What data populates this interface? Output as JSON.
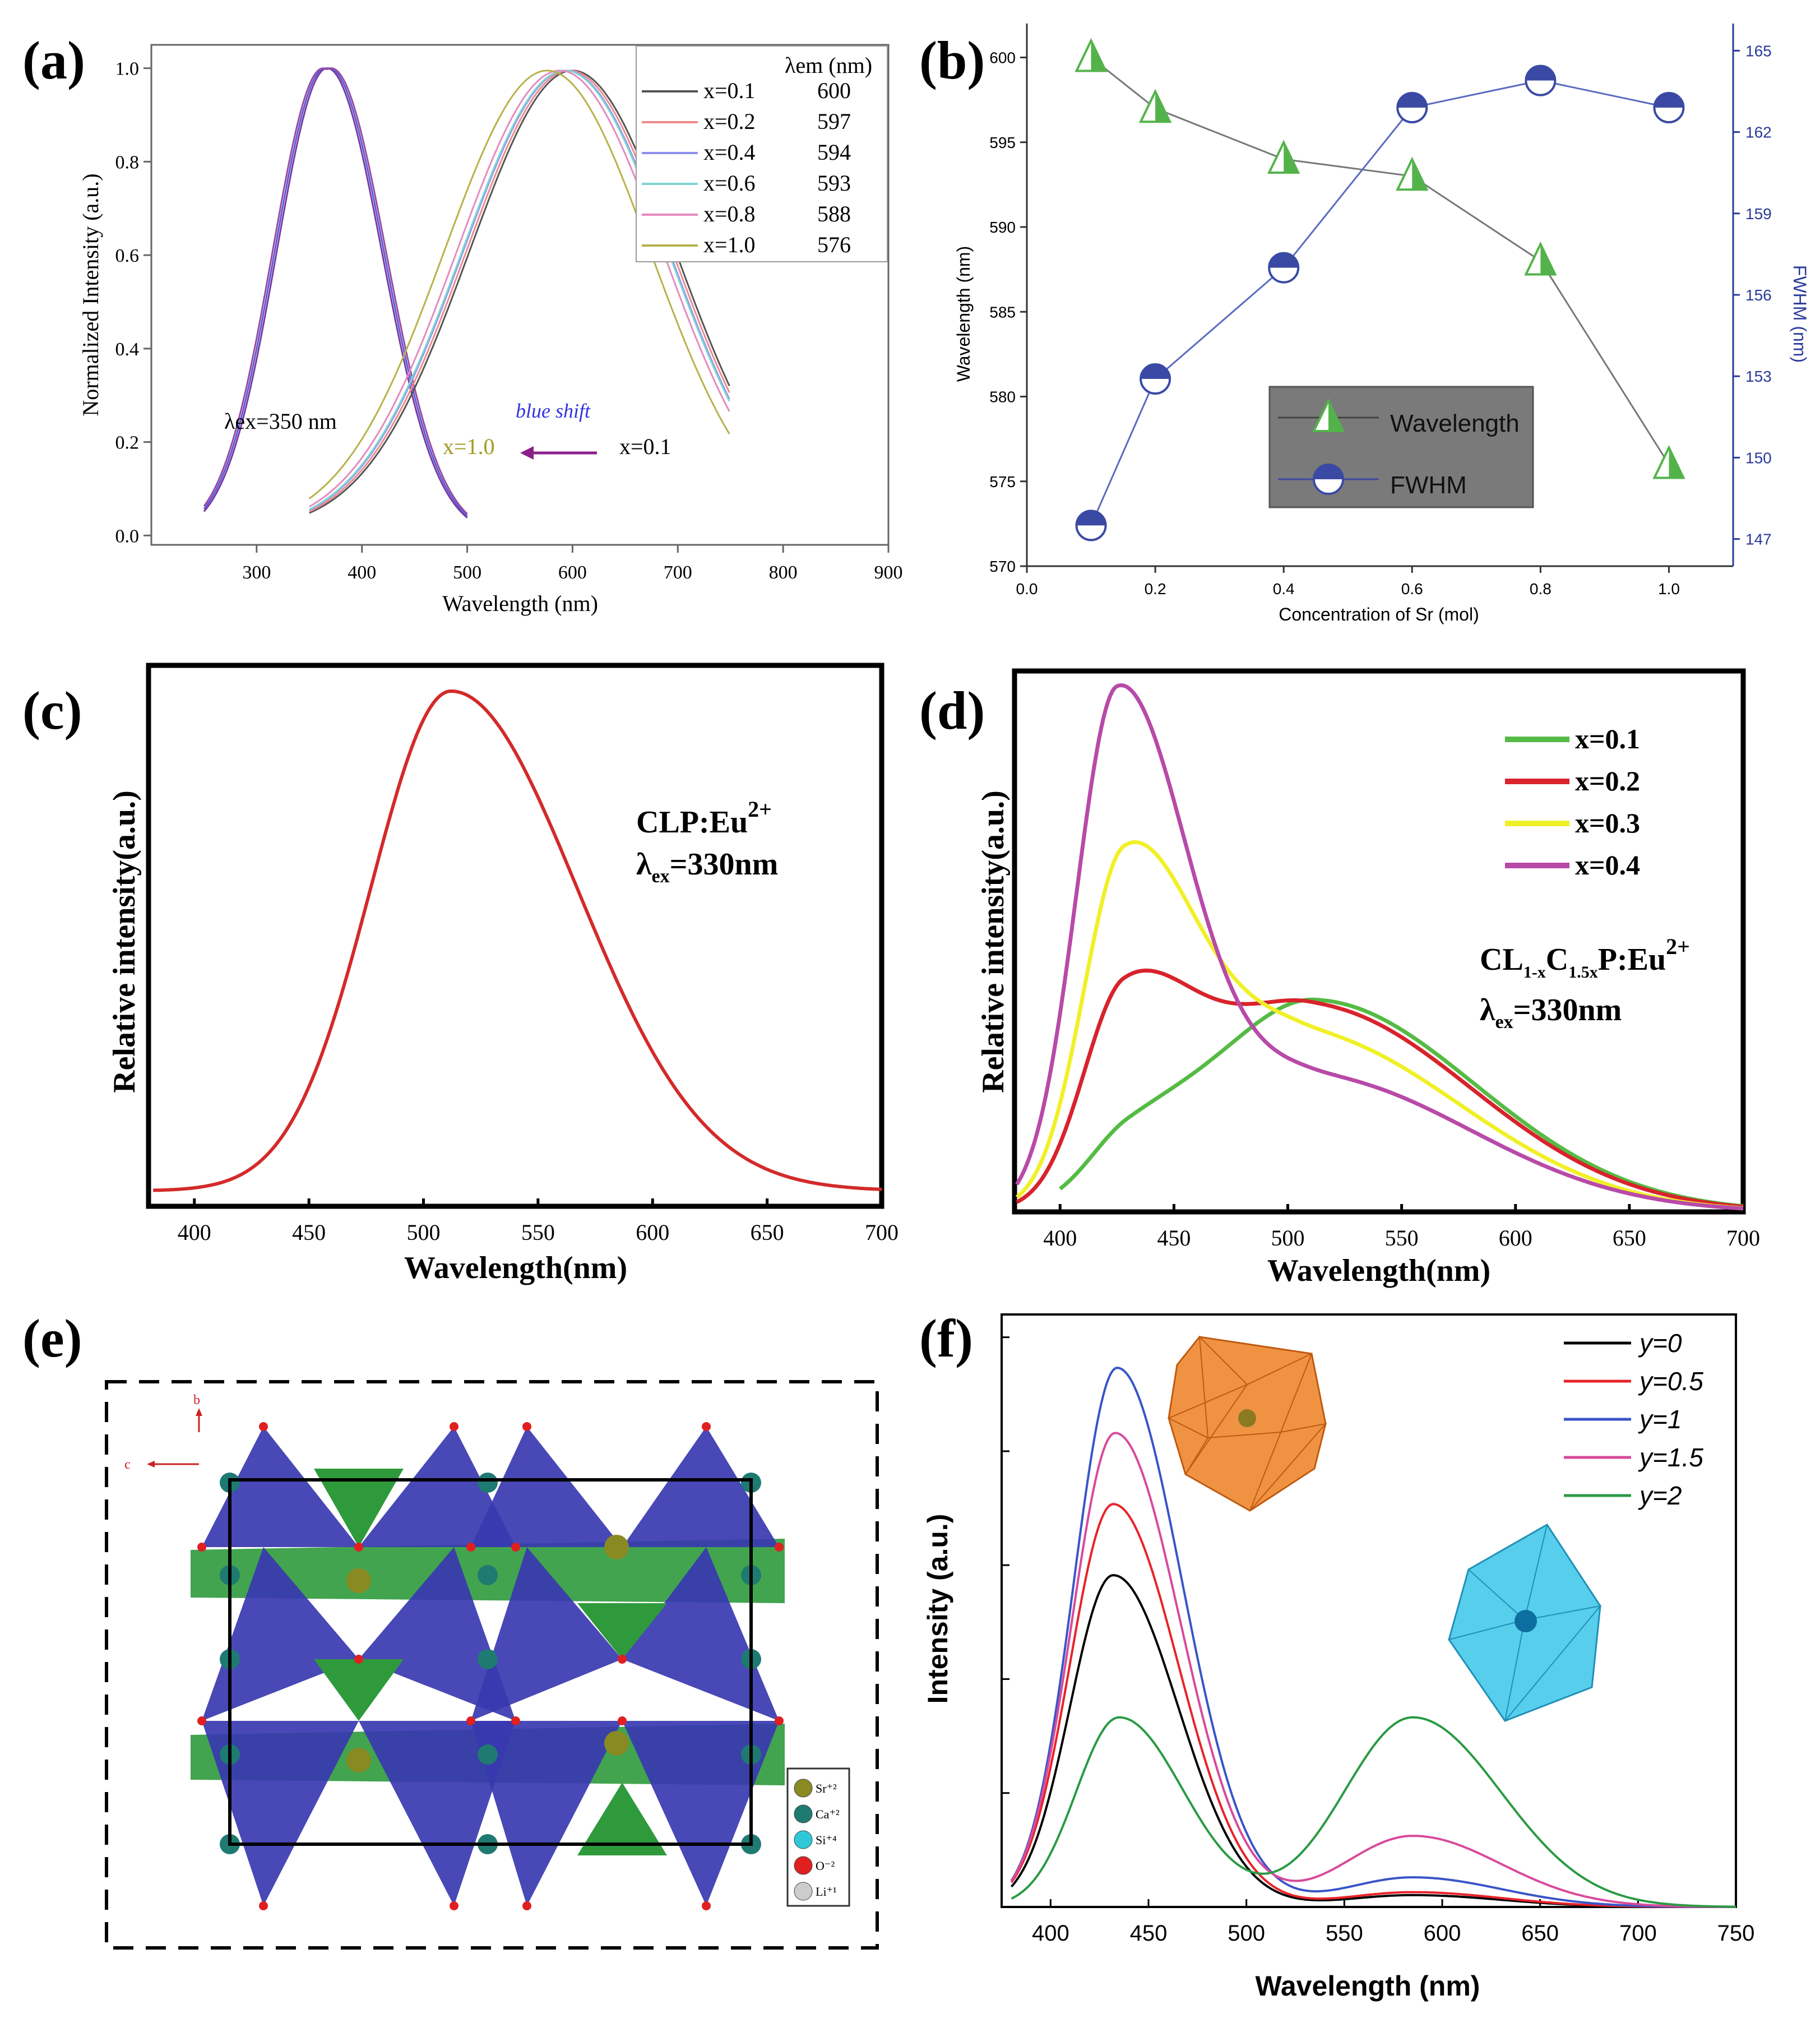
{
  "colors": {
    "xs_a": [
      "#555555",
      "#f08a8a",
      "#8f8ff0",
      "#7fd3d3",
      "#e58ac0",
      "#b6b24a"
    ],
    "wl": "#53b34a",
    "fwhm": "#3a4aa4",
    "d": [
      "#55bb44",
      "#d8232c",
      "#f0f028",
      "#b84aa8"
    ],
    "f": [
      "#000000",
      "#e8232a",
      "#3a55c8",
      "#d84a9a",
      "#2a9a44"
    ],
    "c": "#d42a2a"
  },
  "panel_a": {
    "label": "(a)",
    "xlabel": "Wavelength (nm)",
    "ylabel": "Normalized Intensity (a.u.)",
    "xticks": [
      "300",
      "400",
      "500",
      "600",
      "700",
      "800",
      "900"
    ],
    "yticks": [
      "0.0",
      "0.2",
      "0.4",
      "0.6",
      "0.8",
      "1.0"
    ],
    "legend_title": "λem (nm)",
    "legend": [
      {
        "name": "x=0.1",
        "value": "600"
      },
      {
        "name": "x=0.2",
        "value": "597"
      },
      {
        "name": "x=0.4",
        "value": "594"
      },
      {
        "name": "x=0.6",
        "value": "593"
      },
      {
        "name": "x=0.8",
        "value": "588"
      },
      {
        "name": "x=1.0",
        "value": "576"
      }
    ],
    "annotations": {
      "ex": "λex=350 nm",
      "shift": "blue shift",
      "left": "x=1.0",
      "right": "x=0.1"
    }
  },
  "panel_b": {
    "label": "(b)",
    "xlabel": "Concentration of Sr (mol)",
    "ylabel_left": "Wavelength (nm)",
    "ylabel_right": "FWHM (nm)",
    "xticks": [
      "0.0",
      "0.2",
      "0.4",
      "0.6",
      "0.8",
      "1.0"
    ],
    "yticks_left": [
      "570",
      "575",
      "580",
      "585",
      "590",
      "595",
      "600"
    ],
    "yticks_right": [
      "147",
      "150",
      "153",
      "156",
      "159",
      "162",
      "165"
    ],
    "legend": [
      "Wavelength",
      "FWHM"
    ]
  },
  "panel_c": {
    "label": "(c)",
    "xlabel": "Wavelength(nm)",
    "ylabel": "Relative intensity(a.u.)",
    "xticks": [
      "400",
      "450",
      "500",
      "550",
      "600",
      "650",
      "700"
    ],
    "annot1": "CLP:Eu",
    "annot1_sup": "2+",
    "annot2_pre": "λ",
    "annot2_sub": "ex",
    "annot2_post": "=330nm"
  },
  "panel_d": {
    "label": "(d)",
    "xlabel": "Wavelength(nm)",
    "ylabel": "Relative intensity(a.u.)",
    "xticks": [
      "400",
      "450",
      "500",
      "550",
      "600",
      "650",
      "700"
    ],
    "legend": [
      "x=0.1",
      "x=0.2",
      "x=0.3",
      "x=0.4"
    ],
    "formula": {
      "a": "CL",
      "b": "1-x",
      "c": "C",
      "d": "1.5x",
      "e": "P:Eu",
      "f": "2+"
    },
    "annot2_pre": "λ",
    "annot2_sub": "ex",
    "annot2_post": "=330nm"
  },
  "panel_e": {
    "label": "(e)",
    "axis_b": "b",
    "axis_c": "c",
    "legend": [
      "Sr⁺²",
      "Ca⁺²",
      "Si⁺⁴",
      "O⁻²",
      "Li⁺¹"
    ]
  },
  "panel_f": {
    "label": "(f)",
    "xlabel": "Wavelength (nm)",
    "ylabel": "Intensity (a.u.)",
    "xticks": [
      "400",
      "450",
      "500",
      "550",
      "600",
      "650",
      "700",
      "750"
    ],
    "legend": [
      "y=0",
      "y=0.5",
      "y=1",
      "y=1.5",
      "y=2"
    ]
  },
  "chart_data": [
    {
      "type": "line",
      "panel": "a",
      "title": "",
      "xlabel": "Wavelength (nm)",
      "ylabel": "Normalized Intensity (a.u.)",
      "xlim": [
        200,
        900
      ],
      "ylim": [
        -0.02,
        1.05
      ],
      "excitation": {
        "peak": 367,
        "range": [
          250,
          500
        ]
      },
      "series": [
        {
          "name": "x=0.1",
          "peak": 600,
          "range": [
            350,
            750
          ]
        },
        {
          "name": "x=0.2",
          "peak": 597,
          "range": [
            350,
            750
          ]
        },
        {
          "name": "x=0.4",
          "peak": 594,
          "range": [
            350,
            750
          ]
        },
        {
          "name": "x=0.6",
          "peak": 593,
          "range": [
            350,
            750
          ]
        },
        {
          "name": "x=0.8",
          "peak": 588,
          "range": [
            350,
            750
          ]
        },
        {
          "name": "x=1.0",
          "peak": 576,
          "range": [
            350,
            750
          ]
        }
      ]
    },
    {
      "type": "line",
      "panel": "b",
      "x": [
        0.1,
        0.2,
        0.4,
        0.6,
        0.8,
        1.0
      ],
      "xlim": [
        0.0,
        1.1
      ],
      "series": [
        {
          "name": "Wavelength",
          "axis": "left",
          "values": [
            600,
            597,
            594,
            593,
            588,
            576
          ],
          "ylim": [
            570,
            602
          ]
        },
        {
          "name": "FWHM",
          "axis": "right",
          "values": [
            147.5,
            152.9,
            157.0,
            162.9,
            163.9,
            162.9
          ],
          "ylim": [
            146,
            166
          ]
        }
      ]
    },
    {
      "type": "line",
      "panel": "c",
      "xlim": [
        380,
        700
      ],
      "ylim": [
        0,
        1.05
      ],
      "series": [
        {
          "name": "CLP:Eu2+",
          "peak": 512,
          "peak_value": 1.0
        }
      ]
    },
    {
      "type": "line",
      "panel": "d",
      "xlim": [
        380,
        700
      ],
      "ylim": [
        0,
        1.0
      ],
      "series": [
        {
          "name": "x=0.1",
          "peak_blue": 430,
          "blue": 0.1,
          "peak_yellow": 512,
          "yellow": 0.39
        },
        {
          "name": "x=0.2",
          "peak_blue": 428,
          "blue": 0.36,
          "peak_yellow": 510,
          "yellow": 0.38
        },
        {
          "name": "x=0.3",
          "peak_blue": 428,
          "blue": 0.6,
          "peak_yellow": 505,
          "yellow": 0.33
        },
        {
          "name": "x=0.4",
          "peak_blue": 425,
          "blue": 0.93,
          "peak_yellow": 510,
          "yellow": 0.25
        }
      ]
    },
    {
      "type": "line",
      "panel": "f",
      "xlim": [
        375,
        750
      ],
      "ylim": [
        0,
        1.0
      ],
      "series": [
        {
          "name": "y=0",
          "peak_blue": 432,
          "blue": 0.56,
          "peak_yellow": 585,
          "yellow": 0.02
        },
        {
          "name": "y=0.5",
          "peak_blue": 432,
          "blue": 0.68,
          "peak_yellow": 585,
          "yellow": 0.025
        },
        {
          "name": "y=1",
          "peak_blue": 434,
          "blue": 0.91,
          "peak_yellow": 585,
          "yellow": 0.05
        },
        {
          "name": "y=1.5",
          "peak_blue": 433,
          "blue": 0.8,
          "peak_yellow": 585,
          "yellow": 0.12
        },
        {
          "name": "y=2",
          "peak_blue": 435,
          "blue": 0.32,
          "peak_yellow": 585,
          "yellow": 0.32
        }
      ]
    }
  ]
}
